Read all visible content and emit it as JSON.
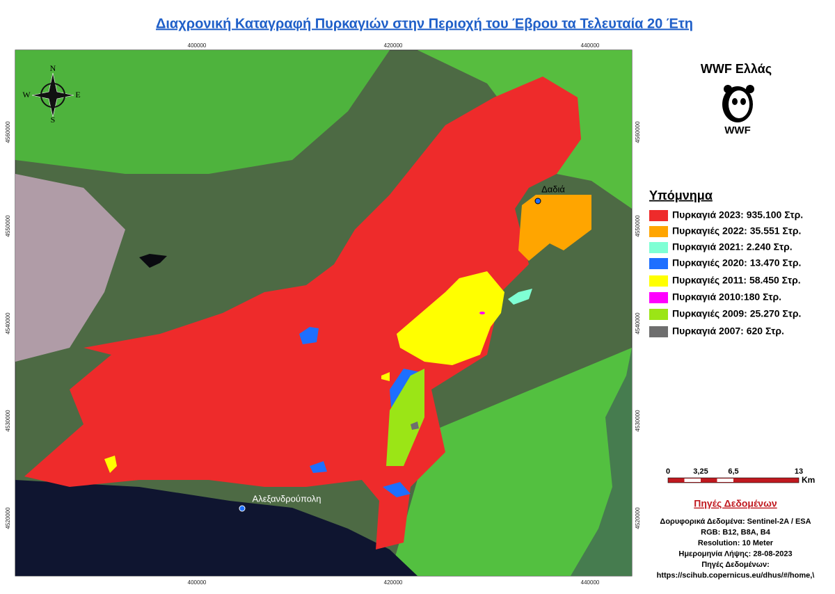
{
  "title": "Διαχρονική Καταγραφή Πυρκαγιών στην Περιοχή του Έβρου τα Τελευταία 20 Έτη",
  "map": {
    "x_ticks_top": [
      400000,
      420000,
      440000
    ],
    "x_ticks_bottom": [
      400000,
      420000,
      440000
    ],
    "y_ticks_left": [
      4560000,
      4550000,
      4540000,
      4530000,
      4520000
    ],
    "y_ticks_right": [
      4560000,
      4550000,
      4540000,
      4530000,
      4520000
    ],
    "places": [
      "Δαδιά",
      "Αλεξανδρούπολη"
    ],
    "compass": [
      "N",
      "E",
      "S",
      "W"
    ]
  },
  "sidebar": {
    "org": "WWF Ελλάς",
    "logo_text": "WWF"
  },
  "legend": {
    "title": "Υπόμνημα",
    "items": [
      {
        "label": "Πυρκαγιά  2023: 935.100 Στρ.",
        "color": "#ee2b2b"
      },
      {
        "label": "Πυρκαγιές  2022: 35.551 Στρ.",
        "color": "#ffa500"
      },
      {
        "label": "Πυρκαγιά  2021: 2.240 Στρ.",
        "color": "#7fffd4"
      },
      {
        "label": "Πυρκαγιές  2020: 13.470 Στρ.",
        "color": "#1e6fff"
      },
      {
        "label": "Πυρκαγιές  2011: 58.450 Στρ.",
        "color": "#ffff00"
      },
      {
        "label": "Πυρκαγιά  2010:180 Στρ.",
        "color": "#ff00ff"
      },
      {
        "label": "Πυρκαγιές  2009: 25.270 Στρ.",
        "color": "#9be516"
      },
      {
        "label": "Πυρκαγιά  2007: 620 Στρ.",
        "color": "#6e6e6e"
      }
    ]
  },
  "scale_bar": {
    "ticks": [
      0,
      {
        "value": 3.25,
        "label": "3,25"
      },
      {
        "value": 6.5,
        "label": "6,5"
      },
      13
    ],
    "unit": "Km"
  },
  "sources": {
    "title": "Πηγές Δεδομένων",
    "lines": [
      "Δορυφορικά Δεδομένα: Sentinel-2A / ESA",
      "RGB: B12, B8A, B4",
      "Resolution: 10 Meter",
      "Ημερομηνία Λήψης: 28-08-2023",
      "Πηγές Δεδομένων:",
      "https://scihub.copernicus.eu/dhus/#/home,\\"
    ]
  }
}
